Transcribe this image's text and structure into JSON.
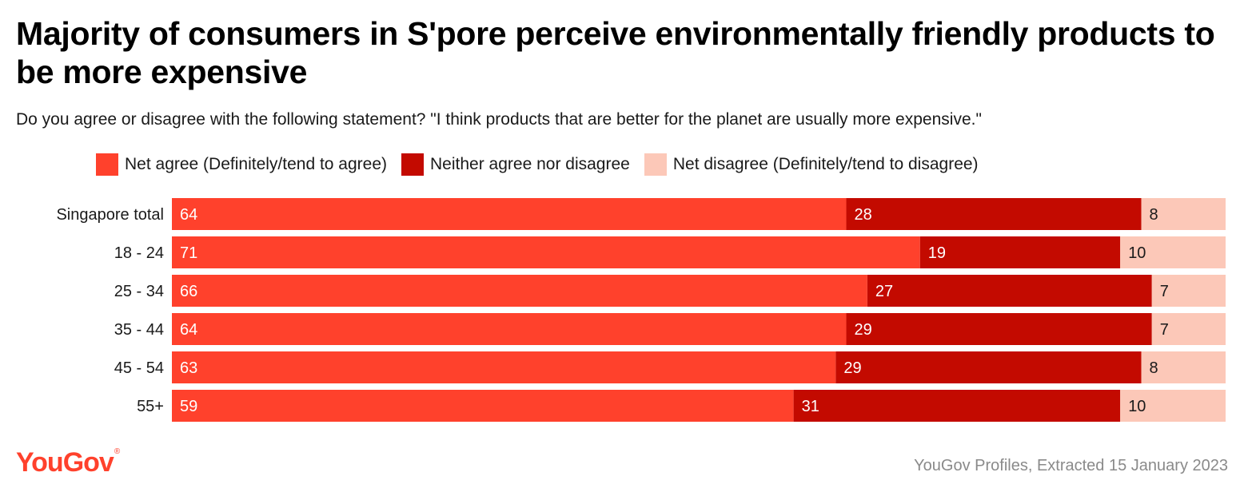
{
  "header": {
    "title": "Majority of consumers in S'pore perceive environmentally friendly products to be more expensive",
    "subtitle": "Do you agree or disagree with the following statement? \"I think products that are better for the planet are usually more expensive.\""
  },
  "footer": {
    "logo": "YouGov",
    "source": "YouGov Profiles, Extracted 15 January 2023"
  },
  "colors": {
    "agree": "#ff412c",
    "neither": "#c30a00",
    "disagree": "#fcc8b8"
  },
  "chart_data": {
    "type": "bar",
    "orientation": "horizontal",
    "stacked": true,
    "categories": [
      "Singapore total",
      "18 - 24",
      "25 - 34",
      "35 - 44",
      "45 - 54",
      "55+"
    ],
    "series": [
      {
        "name": "Net agree (Definitely/tend to agree)",
        "values": [
          64,
          71,
          66,
          64,
          63,
          59
        ]
      },
      {
        "name": "Neither agree nor disagree",
        "values": [
          28,
          19,
          27,
          29,
          29,
          31
        ]
      },
      {
        "name": "Net disagree (Definitely/tend to disagree)",
        "values": [
          8,
          10,
          7,
          7,
          8,
          10
        ]
      }
    ],
    "legend_position": "top",
    "grid": false
  }
}
